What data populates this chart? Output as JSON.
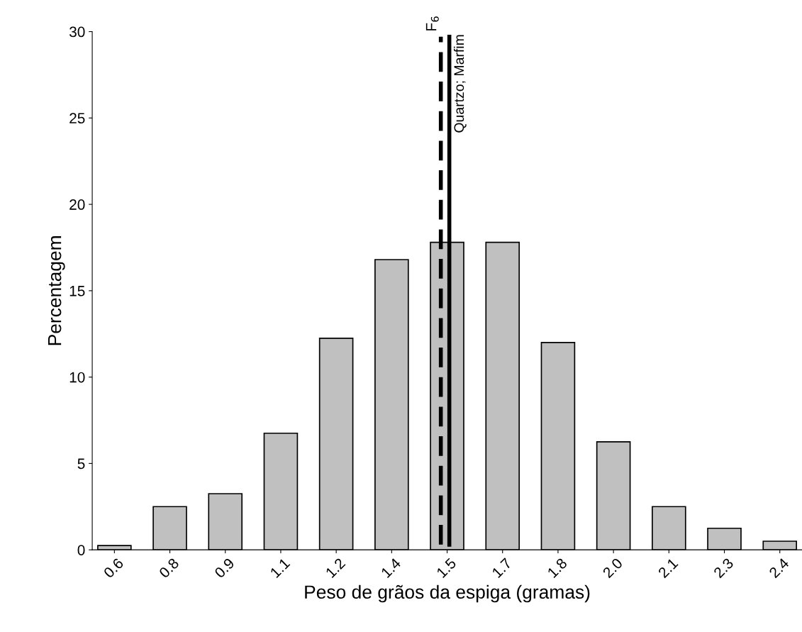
{
  "chart_data": {
    "type": "bar",
    "xlabel": "Peso de grãos da espiga (gramas)",
    "ylabel": "Percentagem",
    "x": [
      0.6,
      0.75,
      0.9,
      1.05,
      1.2,
      1.35,
      1.5,
      1.65,
      1.8,
      1.95,
      2.1,
      2.25,
      2.4
    ],
    "values": [
      0.25,
      2.5,
      3.25,
      6.75,
      12.25,
      16.8,
      17.8,
      17.8,
      12.0,
      6.25,
      2.5,
      1.25,
      0.5
    ],
    "color": "#c0c0c0",
    "xlim": [
      0.54,
      2.46
    ],
    "xticks": [
      {
        "value": 0.6,
        "label": "0.6"
      },
      {
        "value": 0.75,
        "label": "0.8"
      },
      {
        "value": 0.9,
        "label": "0.9"
      },
      {
        "value": 1.05,
        "label": "1.1"
      },
      {
        "value": 1.2,
        "label": "1.2"
      },
      {
        "value": 1.35,
        "label": "1.4"
      },
      {
        "value": 1.5,
        "label": "1.5"
      },
      {
        "value": 1.65,
        "label": "1.7"
      },
      {
        "value": 1.8,
        "label": "1.8"
      },
      {
        "value": 1.95,
        "label": "2.0"
      },
      {
        "value": 2.1,
        "label": "2.1"
      },
      {
        "value": 2.25,
        "label": "2.3"
      },
      {
        "value": 2.4,
        "label": "2.4"
      }
    ],
    "ylim": [
      0,
      30
    ],
    "yticks": [
      0,
      5,
      10,
      15,
      20,
      25,
      30
    ],
    "ref_lines": [
      {
        "axis": "x",
        "value": 1.483,
        "label": "F$_{6}$",
        "line_style": "dashed",
        "color": "#000000"
      },
      {
        "axis": "x",
        "value": 1.506,
        "label": "Quartzo; Marfim",
        "line_style": "solid",
        "color": "#000000"
      }
    ],
    "grid": false,
    "legend": false
  }
}
